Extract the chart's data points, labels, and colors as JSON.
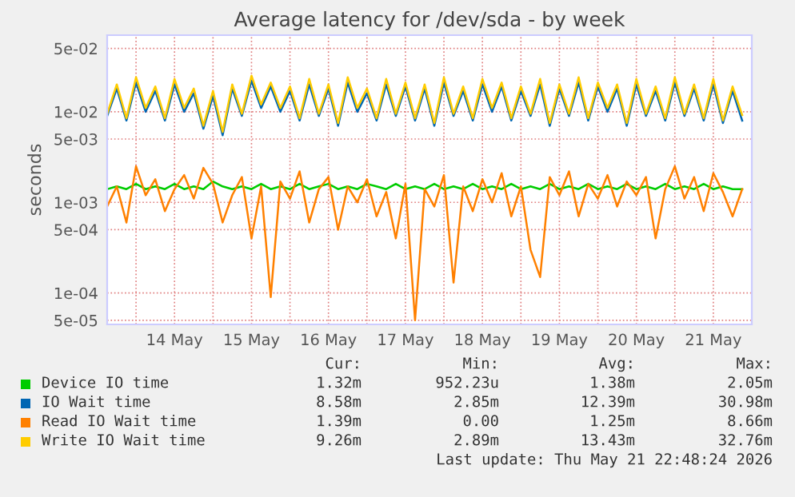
{
  "chart_data": {
    "type": "line",
    "title": "Average latency for /dev/sda - by week",
    "ylabel": "seconds",
    "log": "y",
    "grid": true,
    "legend": "bottom",
    "line_style": "solid",
    "marker": "none",
    "x": [
      "2026-05-13T15:00",
      "2026-05-13T18:00",
      "2026-05-13T21:00",
      "2026-05-14T00:00",
      "2026-05-14T03:00",
      "2026-05-14T06:00",
      "2026-05-14T09:00",
      "2026-05-14T12:00",
      "2026-05-14T15:00",
      "2026-05-14T18:00",
      "2026-05-14T21:00",
      "2026-05-15T00:00",
      "2026-05-15T03:00",
      "2026-05-15T06:00",
      "2026-05-15T09:00",
      "2026-05-15T12:00",
      "2026-05-15T15:00",
      "2026-05-15T18:00",
      "2026-05-15T21:00",
      "2026-05-16T00:00",
      "2026-05-16T03:00",
      "2026-05-16T06:00",
      "2026-05-16T09:00",
      "2026-05-16T12:00",
      "2026-05-16T15:00",
      "2026-05-16T18:00",
      "2026-05-16T21:00",
      "2026-05-17T00:00",
      "2026-05-17T03:00",
      "2026-05-17T06:00",
      "2026-05-17T09:00",
      "2026-05-17T12:00",
      "2026-05-17T15:00",
      "2026-05-17T18:00",
      "2026-05-17T21:00",
      "2026-05-18T00:00",
      "2026-05-18T03:00",
      "2026-05-18T06:00",
      "2026-05-18T09:00",
      "2026-05-18T12:00",
      "2026-05-18T15:00",
      "2026-05-18T18:00",
      "2026-05-18T21:00",
      "2026-05-19T00:00",
      "2026-05-19T03:00",
      "2026-05-19T06:00",
      "2026-05-19T09:00",
      "2026-05-19T12:00",
      "2026-05-19T15:00",
      "2026-05-19T18:00",
      "2026-05-19T21:00",
      "2026-05-20T00:00",
      "2026-05-20T03:00",
      "2026-05-20T06:00",
      "2026-05-20T09:00",
      "2026-05-20T12:00",
      "2026-05-20T15:00",
      "2026-05-20T18:00",
      "2026-05-20T21:00",
      "2026-05-21T00:00",
      "2026-05-21T03:00",
      "2026-05-21T06:00",
      "2026-05-21T09:00",
      "2026-05-21T12:00",
      "2026-05-21T15:00",
      "2026-05-21T18:00",
      "2026-05-21T21:00"
    ],
    "xlim": [
      "2026-05-13T15:00",
      "2026-05-22T00:00"
    ],
    "xticks": [
      {
        "value": "2026-05-14T00:00",
        "label": null
      },
      {
        "value": "2026-05-14T12:00",
        "label": "14 May"
      },
      {
        "value": "2026-05-15T00:00",
        "label": null
      },
      {
        "value": "2026-05-15T12:00",
        "label": "15 May"
      },
      {
        "value": "2026-05-16T00:00",
        "label": null
      },
      {
        "value": "2026-05-16T12:00",
        "label": "16 May"
      },
      {
        "value": "2026-05-17T00:00",
        "label": null
      },
      {
        "value": "2026-05-17T12:00",
        "label": "17 May"
      },
      {
        "value": "2026-05-18T00:00",
        "label": null
      },
      {
        "value": "2026-05-18T12:00",
        "label": "18 May"
      },
      {
        "value": "2026-05-19T00:00",
        "label": null
      },
      {
        "value": "2026-05-19T12:00",
        "label": "19 May"
      },
      {
        "value": "2026-05-20T00:00",
        "label": null
      },
      {
        "value": "2026-05-20T12:00",
        "label": "20 May"
      },
      {
        "value": "2026-05-21T00:00",
        "label": null
      },
      {
        "value": "2026-05-21T12:00",
        "label": "21 May"
      },
      {
        "value": "2026-05-22T00:00",
        "label": null
      }
    ],
    "ylim": [
      4.5e-05,
      0.07
    ],
    "yticks": [
      {
        "value": 5e-05,
        "label": "5e-05"
      },
      {
        "value": 0.0001,
        "label": "1e-04"
      },
      {
        "value": 0.0005,
        "label": "5e-04"
      },
      {
        "value": 0.001,
        "label": "1e-03"
      },
      {
        "value": 0.005,
        "label": "5e-03"
      },
      {
        "value": 0.01,
        "label": "1e-02"
      },
      {
        "value": 0.05,
        "label": "5e-02"
      }
    ],
    "series": [
      {
        "name": "Device IO time",
        "color": "#00cc00",
        "values": [
          0.0014,
          0.0015,
          0.0014,
          0.0016,
          0.0014,
          0.0015,
          0.0014,
          0.0016,
          0.0014,
          0.0015,
          0.0014,
          0.0017,
          0.0015,
          0.0014,
          0.0015,
          0.0014,
          0.0016,
          0.0014,
          0.0015,
          0.0014,
          0.0016,
          0.0014,
          0.0015,
          0.0016,
          0.0014,
          0.0015,
          0.0014,
          0.0016,
          0.0015,
          0.0014,
          0.0016,
          0.0014,
          0.0015,
          0.0014,
          0.0016,
          0.0014,
          0.0015,
          0.0014,
          0.0016,
          0.0014,
          0.0015,
          0.0014,
          0.0016,
          0.0014,
          0.0015,
          0.0014,
          0.0016,
          0.0014,
          0.0015,
          0.0014,
          0.0016,
          0.0014,
          0.0015,
          0.0014,
          0.0016,
          0.0014,
          0.0015,
          0.0014,
          0.0016,
          0.0014,
          0.0015,
          0.0014,
          0.0016,
          0.0014,
          0.0015,
          0.0014,
          0.0014
        ]
      },
      {
        "name": "IO Wait time",
        "color": "#0066b3",
        "values": [
          0.009,
          0.018,
          0.008,
          0.021,
          0.01,
          0.017,
          0.008,
          0.02,
          0.01,
          0.016,
          0.0065,
          0.015,
          0.0055,
          0.018,
          0.009,
          0.022,
          0.011,
          0.019,
          0.01,
          0.017,
          0.008,
          0.02,
          0.009,
          0.018,
          0.007,
          0.021,
          0.01,
          0.016,
          0.008,
          0.02,
          0.009,
          0.019,
          0.008,
          0.018,
          0.007,
          0.021,
          0.009,
          0.017,
          0.008,
          0.02,
          0.01,
          0.019,
          0.008,
          0.017,
          0.009,
          0.02,
          0.007,
          0.018,
          0.009,
          0.021,
          0.008,
          0.019,
          0.01,
          0.018,
          0.007,
          0.02,
          0.009,
          0.017,
          0.008,
          0.021,
          0.009,
          0.018,
          0.008,
          0.02,
          0.0075,
          0.017,
          0.008
        ]
      },
      {
        "name": "Read IO Wait time",
        "color": "#ff8000",
        "values": [
          0.0009,
          0.0015,
          0.0006,
          0.0025,
          0.0012,
          0.0018,
          0.0008,
          0.0014,
          0.002,
          0.0011,
          0.0024,
          0.0016,
          0.0006,
          0.0012,
          0.0019,
          0.0004,
          0.0015,
          9e-05,
          0.0017,
          0.0011,
          0.0022,
          0.0006,
          0.0014,
          0.0019,
          0.0005,
          0.0015,
          0.001,
          0.0018,
          0.0007,
          0.0013,
          0.0004,
          0.0016,
          5e-05,
          0.0014,
          0.0009,
          0.002,
          0.00013,
          0.0015,
          0.0008,
          0.0018,
          0.001,
          0.0021,
          0.0007,
          0.0015,
          0.0003,
          0.00015,
          0.0019,
          0.0012,
          0.0022,
          0.0007,
          0.0016,
          0.0011,
          0.002,
          0.0009,
          0.0017,
          0.0012,
          0.0019,
          0.0004,
          0.0014,
          0.0025,
          0.0011,
          0.0019,
          0.0008,
          0.0021,
          0.0013,
          0.0007,
          0.0014
        ]
      },
      {
        "name": "Write IO Wait time",
        "color": "#ffcc00",
        "values": [
          0.0095,
          0.02,
          0.0085,
          0.024,
          0.011,
          0.019,
          0.0085,
          0.023,
          0.011,
          0.018,
          0.007,
          0.017,
          0.006,
          0.02,
          0.0095,
          0.025,
          0.012,
          0.021,
          0.011,
          0.019,
          0.0085,
          0.023,
          0.0095,
          0.02,
          0.0075,
          0.024,
          0.011,
          0.018,
          0.0085,
          0.023,
          0.0095,
          0.021,
          0.0085,
          0.02,
          0.0075,
          0.024,
          0.0095,
          0.019,
          0.0085,
          0.023,
          0.011,
          0.021,
          0.0085,
          0.019,
          0.0095,
          0.023,
          0.0075,
          0.02,
          0.0095,
          0.024,
          0.0085,
          0.021,
          0.011,
          0.02,
          0.0075,
          0.023,
          0.0095,
          0.019,
          0.0085,
          0.024,
          0.0095,
          0.02,
          0.0085,
          0.023,
          0.008,
          0.019,
          0.0092
        ]
      }
    ],
    "annotations": [
      "Cur:",
      "Min:",
      "Avg:",
      "Max:",
      "1.32m",
      "952.23u",
      "1.38m",
      "2.05m",
      "8.58m",
      "2.85m",
      "12.39m",
      "30.98m",
      "1.39m",
      "0.00",
      "1.25m",
      "8.66m",
      "9.26m",
      "2.89m",
      "13.43m",
      "32.76m",
      "Last update: Thu May 21 22:48:24 2026"
    ]
  }
}
